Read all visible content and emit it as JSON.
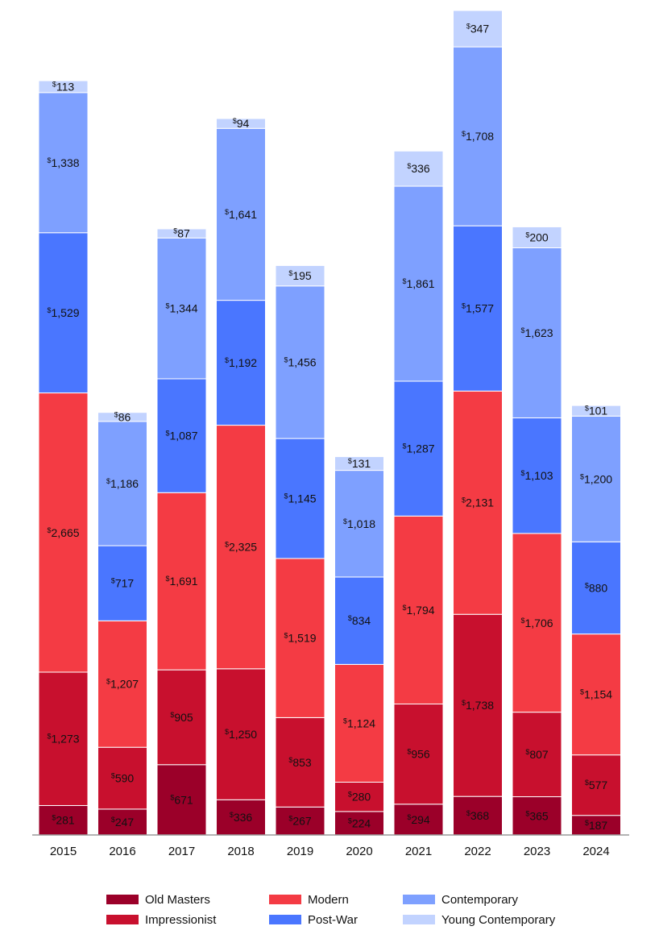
{
  "chart_data": {
    "type": "bar",
    "stacked": true,
    "currency_symbol": "$",
    "categories": [
      "2015",
      "2016",
      "2017",
      "2018",
      "2019",
      "2020",
      "2021",
      "2022",
      "2023",
      "2024"
    ],
    "series": [
      {
        "name": "Old Masters",
        "color": "#9b0029",
        "label_color": "#ffffff",
        "values": [
          281,
          247,
          671,
          336,
          267,
          224,
          294,
          368,
          365,
          187
        ]
      },
      {
        "name": "Impressionist",
        "color": "#c8102e",
        "label_color": "#ffffff",
        "values": [
          1273,
          590,
          905,
          1250,
          853,
          280,
          956,
          1738,
          807,
          577
        ]
      },
      {
        "name": "Modern",
        "color": "#f43b44",
        "label_color": "#111111",
        "values": [
          2665,
          1207,
          1691,
          2325,
          1519,
          1124,
          1794,
          2131,
          1706,
          1154
        ]
      },
      {
        "name": "Post-War",
        "color": "#4a76ff",
        "label_color": "#111111",
        "values": [
          1529,
          717,
          1087,
          1192,
          1145,
          834,
          1287,
          1577,
          1103,
          880
        ]
      },
      {
        "name": "Contemporary",
        "color": "#7ea0ff",
        "label_color": "#111111",
        "values": [
          1338,
          1186,
          1344,
          1641,
          1456,
          1018,
          1861,
          1708,
          1623,
          1200
        ]
      },
      {
        "name": "Young Contemporary",
        "color": "#c2d3ff",
        "label_color": "#111111",
        "values": [
          113,
          86,
          87,
          94,
          195,
          131,
          336,
          347,
          200,
          101
        ]
      }
    ],
    "title": "",
    "xlabel": "",
    "ylabel": "",
    "legend_position": "bottom"
  }
}
